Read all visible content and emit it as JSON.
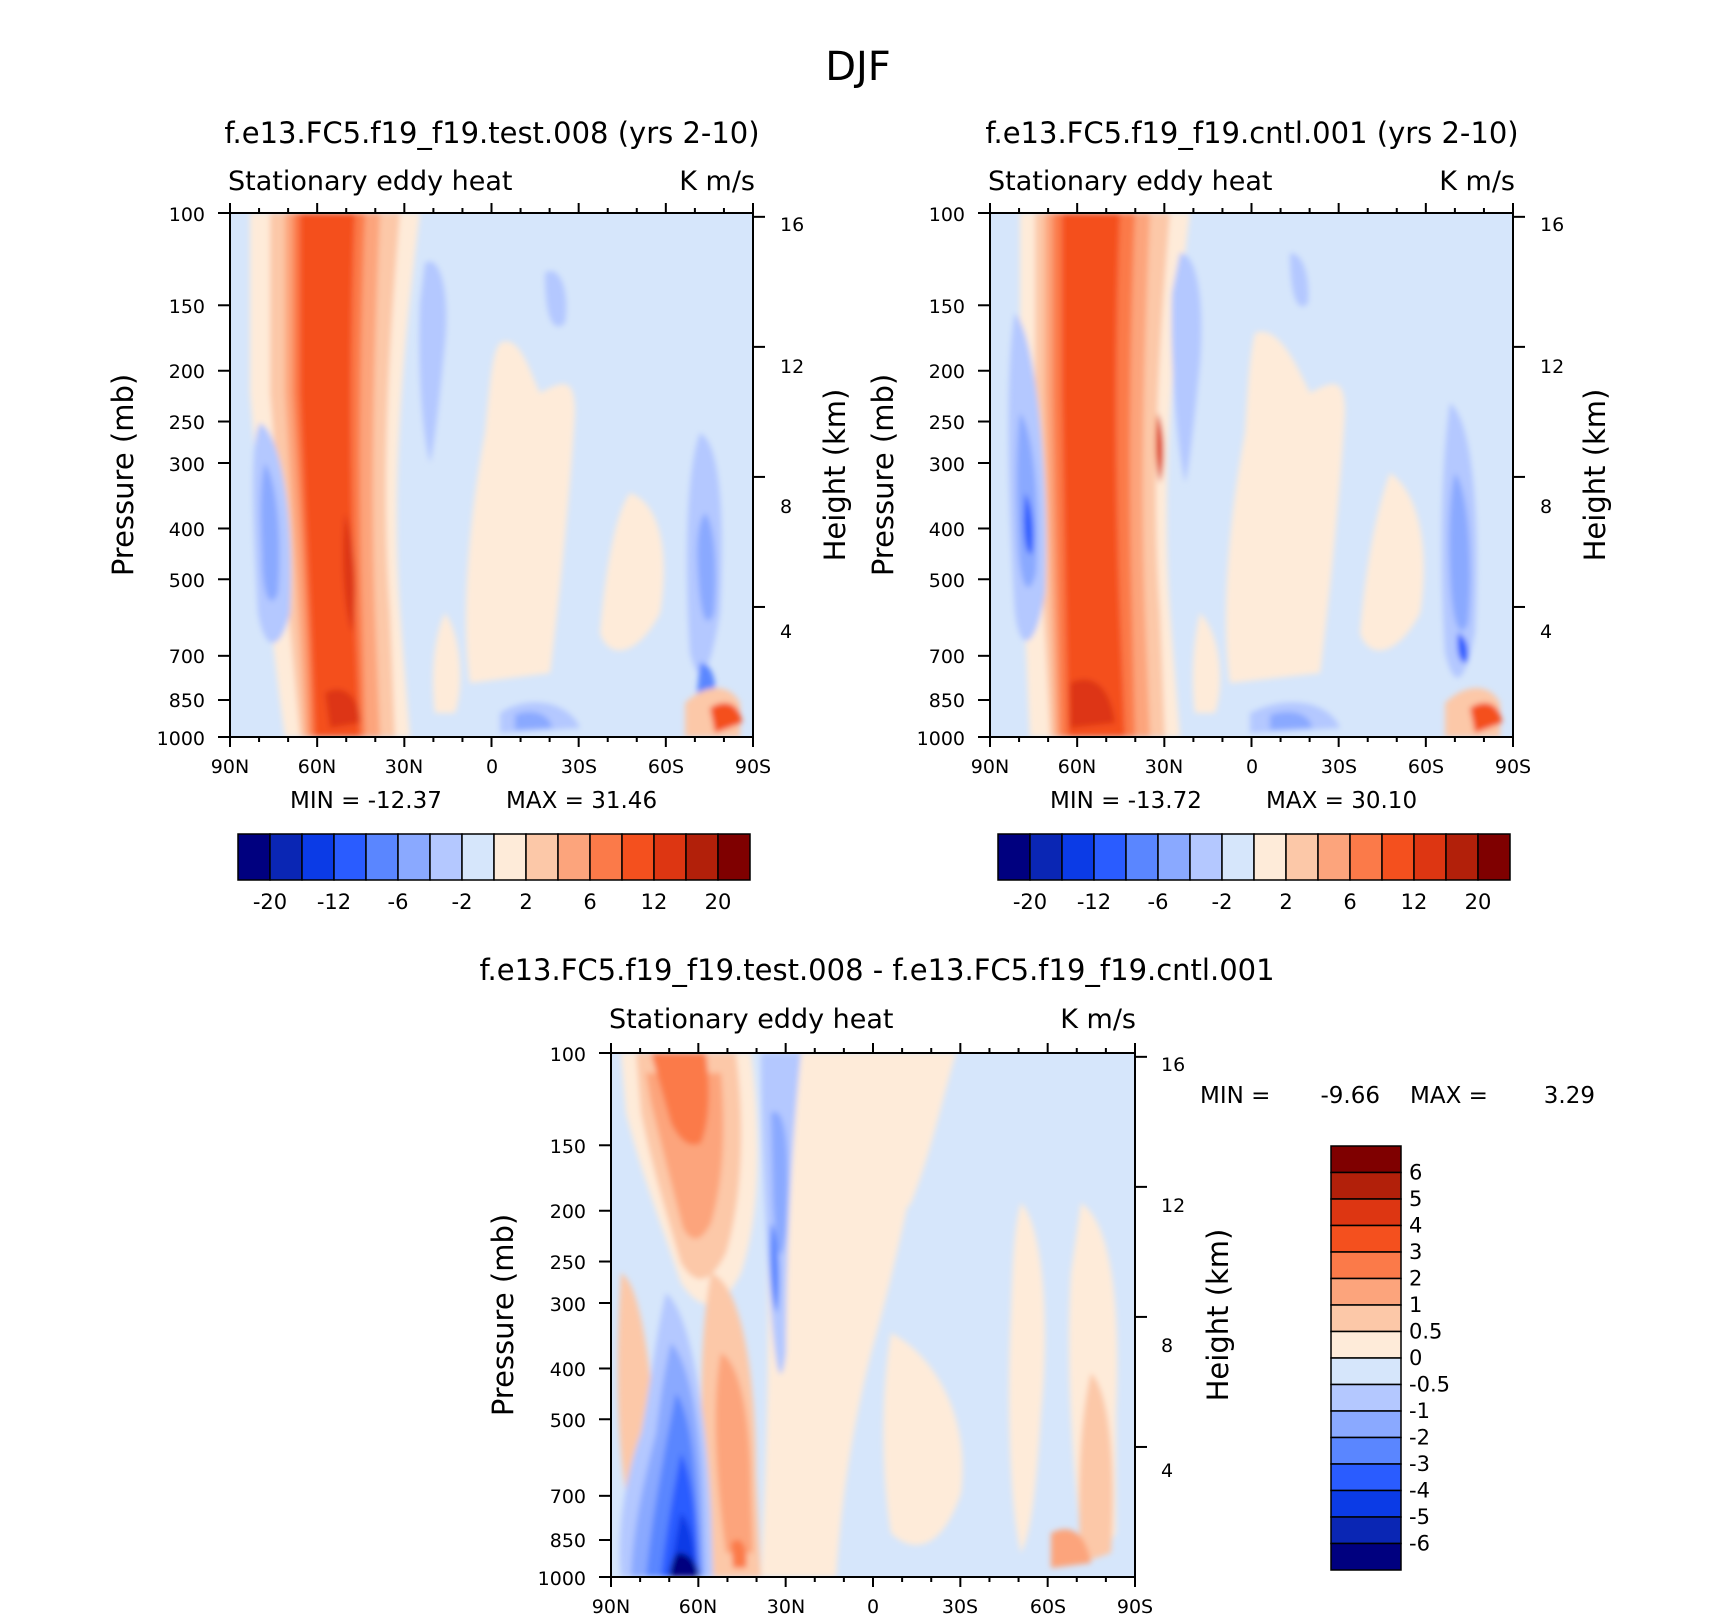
{
  "figure": {
    "title": "DJF"
  },
  "chart_data": [
    {
      "type": "heatmap",
      "title": "f.e13.FC5.f19_f19.test.008 (yrs 2-10)",
      "left_string": "Stationary eddy heat",
      "right_string": "K m/s",
      "xlabel": "",
      "ylabel": "Pressure (mb)",
      "ylabel_right": "Height (km)",
      "x_ticks": [
        "90N",
        "60N",
        "30N",
        "0",
        "30S",
        "60S",
        "90S"
      ],
      "y_ticks": [
        "100",
        "150",
        "200",
        "250",
        "300",
        "400",
        "500",
        "700",
        "850",
        "1000"
      ],
      "y_ticks_right": [
        "16",
        "12",
        "8",
        "4"
      ],
      "ylim": [
        1000,
        100
      ],
      "min_label": "MIN =  -12.37",
      "max_label": "MAX =   31.46",
      "min": -12.37,
      "max": 31.46,
      "colorbar_labels": [
        "-20",
        "-12",
        "-6",
        "-2",
        "2",
        "6",
        "12",
        "20"
      ],
      "features": [
        {
          "lat": 47,
          "p_top": 100,
          "p_bot": 1000,
          "value": 16,
          "desc": "deep positive column"
        },
        {
          "lat": 75,
          "p_top": 250,
          "p_bot": 650,
          "value": -4,
          "desc": "negative lobe"
        },
        {
          "lat": -75,
          "p_top": 300,
          "p_bot": 800,
          "value": -4,
          "desc": "southern negative lobe"
        }
      ]
    },
    {
      "type": "heatmap",
      "title": "f.e13.FC5.f19_f19.cntl.001 (yrs 2-10)",
      "left_string": "Stationary eddy heat",
      "right_string": "K m/s",
      "xlabel": "",
      "ylabel": "Pressure (mb)",
      "ylabel_right": "Height (km)",
      "x_ticks": [
        "90N",
        "60N",
        "30N",
        "0",
        "30S",
        "60S",
        "90S"
      ],
      "y_ticks": [
        "100",
        "150",
        "200",
        "250",
        "300",
        "400",
        "500",
        "700",
        "850",
        "1000"
      ],
      "y_ticks_right": [
        "16",
        "12",
        "8",
        "4"
      ],
      "ylim": [
        1000,
        100
      ],
      "min_label": "MIN =  -13.72",
      "max_label": "MAX =   30.10",
      "min": -13.72,
      "max": 30.1,
      "colorbar_labels": [
        "-20",
        "-12",
        "-6",
        "-2",
        "2",
        "6",
        "12",
        "20"
      ],
      "features": [
        {
          "lat": 45,
          "p_top": 100,
          "p_bot": 1000,
          "value": 16,
          "desc": "deep positive column"
        },
        {
          "lat": 75,
          "p_top": 150,
          "p_bot": 700,
          "value": -6,
          "desc": "negative lobe"
        },
        {
          "lat": -75,
          "p_top": 300,
          "p_bot": 800,
          "value": -4,
          "desc": "southern negative lobe"
        }
      ]
    },
    {
      "type": "heatmap",
      "title": "f.e13.FC5.f19_f19.test.008 - f.e13.FC5.f19_f19.cntl.001",
      "left_string": "Stationary eddy heat",
      "right_string": "K m/s",
      "xlabel": "",
      "ylabel": "Pressure (mb)",
      "ylabel_right": "Height (km)",
      "x_ticks": [
        "90N",
        "60N",
        "30N",
        "0",
        "30S",
        "60S",
        "90S"
      ],
      "y_ticks": [
        "100",
        "150",
        "200",
        "250",
        "300",
        "400",
        "500",
        "700",
        "850",
        "1000"
      ],
      "y_ticks_right": [
        "16",
        "12",
        "8",
        "4"
      ],
      "ylim": [
        1000,
        100
      ],
      "min_label": "MIN =",
      "min_value": "-9.66",
      "max_label": "MAX =",
      "max_value": "3.29",
      "min": -9.66,
      "max": 3.29,
      "colorbar_labels": [
        "6",
        "5",
        "4",
        "3",
        "2",
        "1",
        "0.5",
        "0",
        "-0.5",
        "-1",
        "-2",
        "-3",
        "-4",
        "-5",
        "-6"
      ],
      "features": [
        {
          "lat": 62,
          "p_top": 400,
          "p_bot": 1000,
          "value": -5,
          "desc": "negative low-level core"
        },
        {
          "lat": 65,
          "p_top": 100,
          "p_bot": 500,
          "value": 2,
          "desc": "positive upper column"
        },
        {
          "lat": 45,
          "p_top": 300,
          "p_bot": 1000,
          "value": 1.5,
          "desc": "positive column"
        }
      ]
    }
  ],
  "palette_main": [
    "#00007f",
    "#0a26b4",
    "#0b3be6",
    "#2a5cff",
    "#5a86ff",
    "#8aa9ff",
    "#b4c8ff",
    "#d6e6fb",
    "#feebd9",
    "#fcc8a8",
    "#fca47c",
    "#fb7a49",
    "#f4501e",
    "#dd3612",
    "#b2200a",
    "#7f0000"
  ],
  "palette_diff": [
    "#7f0000",
    "#b2200a",
    "#dd3612",
    "#f4501e",
    "#fb7a49",
    "#fca47c",
    "#fcc8a8",
    "#feebd9",
    "#d6e6fb",
    "#b4c8ff",
    "#8aa9ff",
    "#5a86ff",
    "#2a5cff",
    "#0b3be6",
    "#0a26b4",
    "#00007f"
  ],
  "background_fill": "#d6e6fb"
}
